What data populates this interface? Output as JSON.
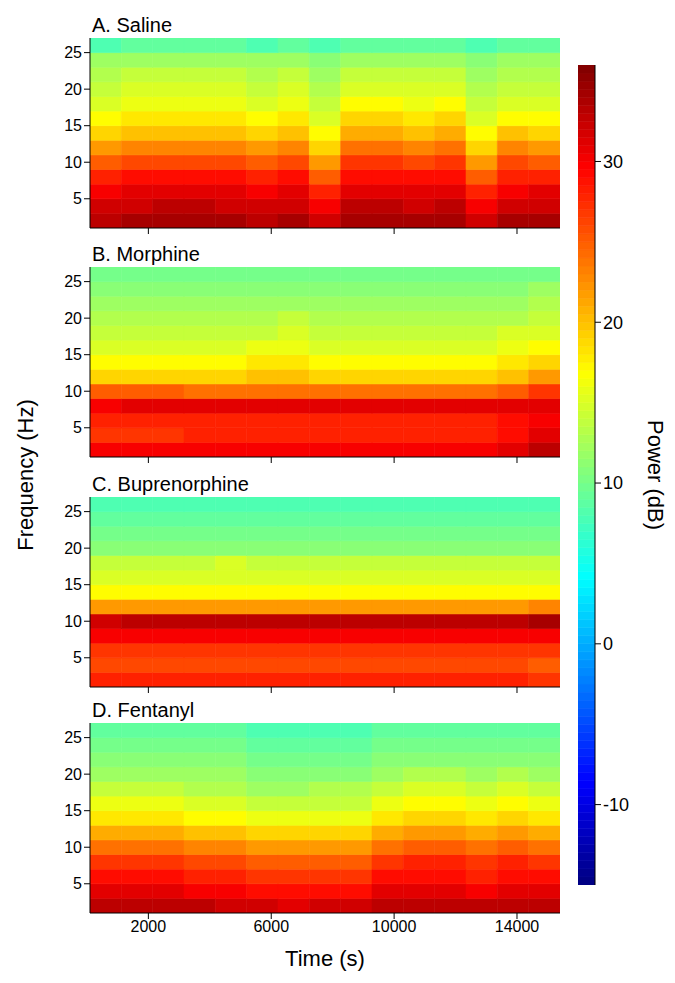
{
  "ylabel": "Frequency (Hz)",
  "colorbar": {
    "range": [
      -15,
      36
    ],
    "ticks": [
      -10,
      0,
      10,
      20,
      30
    ],
    "label": "Power (dB)"
  },
  "chart_data": [
    {
      "type": "heatmap",
      "title": "A. Saline",
      "xlim": [
        100,
        15400
      ],
      "xticks": [
        2000,
        6000,
        10000,
        14000
      ],
      "ylim": [
        1,
        27
      ],
      "yticks": [
        5,
        10,
        15,
        20,
        25
      ],
      "tick_labels": "y",
      "x_bins": [
        100,
        1120,
        2140,
        3160,
        4180,
        5200,
        6220,
        7240,
        8260,
        9280,
        10300,
        11320,
        12340,
        13360,
        14380,
        15400
      ],
      "y_bins": [
        1,
        3,
        5,
        7,
        9,
        11,
        13,
        15,
        17,
        19,
        21,
        23,
        25,
        27
      ],
      "cells": [
        [
          33,
          34,
          34,
          34,
          34,
          33,
          34,
          32,
          34,
          34,
          34,
          34,
          32,
          34,
          34
        ],
        [
          32,
          32,
          33,
          33,
          32,
          32,
          32,
          30,
          33,
          33,
          32,
          33,
          30,
          32,
          32
        ],
        [
          30,
          31,
          31,
          31,
          31,
          30,
          31,
          28,
          31,
          31,
          31,
          31,
          28,
          30,
          31
        ],
        [
          28,
          29,
          29,
          29,
          29,
          28,
          29,
          25,
          29,
          29,
          29,
          29,
          25,
          28,
          28
        ],
        [
          25,
          26,
          26,
          26,
          26,
          25,
          26,
          22,
          27,
          27,
          26,
          27,
          22,
          26,
          25
        ],
        [
          22,
          23,
          23,
          23,
          23,
          22,
          23,
          19,
          24,
          24,
          23,
          24,
          19,
          23,
          22
        ],
        [
          19,
          20,
          20,
          20,
          20,
          19,
          20,
          17,
          21,
          21,
          20,
          21,
          17,
          20,
          19
        ],
        [
          17,
          18,
          18,
          18,
          18,
          17,
          18,
          15,
          19,
          19,
          18,
          19,
          15,
          17,
          17
        ],
        [
          15,
          16,
          16,
          16,
          16,
          15,
          16,
          14,
          17,
          17,
          16,
          17,
          14,
          15,
          15
        ],
        [
          14,
          15,
          15,
          15,
          15,
          14,
          15,
          13,
          15,
          15,
          15,
          15,
          13,
          14,
          14
        ],
        [
          13,
          14,
          14,
          14,
          14,
          13,
          14,
          12,
          14,
          14,
          14,
          14,
          12,
          13,
          13
        ],
        [
          12,
          12,
          12,
          12,
          12,
          12,
          12,
          11,
          12,
          12,
          12,
          12,
          11,
          12,
          12
        ],
        [
          8,
          9,
          9,
          9,
          9,
          8,
          9,
          8,
          9,
          9,
          9,
          9,
          8,
          9,
          9
        ]
      ]
    },
    {
      "type": "heatmap",
      "title": "B. Morphine",
      "xlim": [
        100,
        15400
      ],
      "xticks": [
        2000,
        6000,
        10000,
        14000
      ],
      "ylim": [
        1,
        27
      ],
      "yticks": [
        5,
        10,
        15,
        20,
        25
      ],
      "tick_labels": "y",
      "x_bins": [
        100,
        1120,
        2140,
        3160,
        4180,
        5200,
        6220,
        7240,
        8260,
        9280,
        10300,
        11320,
        12340,
        13360,
        14380,
        15400
      ],
      "y_bins": [
        1,
        3,
        5,
        7,
        9,
        11,
        13,
        15,
        17,
        19,
        21,
        23,
        25,
        27
      ],
      "cells": [
        [
          30,
          30,
          30,
          30,
          30,
          30,
          30,
          30,
          30,
          30,
          30,
          30,
          30,
          31,
          33
        ],
        [
          27,
          27,
          27,
          28,
          28,
          28,
          28,
          28,
          28,
          28,
          28,
          28,
          28,
          29,
          31
        ],
        [
          28,
          28,
          28,
          28,
          28,
          28,
          28,
          28,
          28,
          28,
          28,
          28,
          28,
          29,
          30
        ],
        [
          30,
          31,
          31,
          31,
          31,
          31,
          31,
          31,
          31,
          31,
          31,
          31,
          31,
          31,
          31
        ],
        [
          25,
          25,
          25,
          24,
          24,
          24,
          24,
          24,
          24,
          24,
          24,
          24,
          24,
          25,
          27
        ],
        [
          19,
          19,
          19,
          19,
          19,
          20,
          20,
          19,
          19,
          19,
          19,
          19,
          19,
          20,
          22
        ],
        [
          17,
          17,
          17,
          17,
          17,
          18,
          18,
          17,
          17,
          17,
          17,
          17,
          17,
          18,
          19
        ],
        [
          15,
          15,
          15,
          15,
          15,
          16,
          16,
          15,
          15,
          15,
          15,
          15,
          15,
          16,
          17
        ],
        [
          14,
          14,
          14,
          14,
          14,
          14,
          15,
          14,
          14,
          14,
          14,
          14,
          14,
          15,
          15
        ],
        [
          13,
          13,
          13,
          13,
          13,
          13,
          14,
          13,
          13,
          13,
          13,
          13,
          13,
          13,
          14
        ],
        [
          12,
          12,
          12,
          12,
          12,
          12,
          12,
          12,
          12,
          12,
          12,
          12,
          12,
          12,
          13
        ],
        [
          11,
          11,
          11,
          11,
          11,
          11,
          11,
          11,
          11,
          11,
          11,
          11,
          11,
          11,
          12
        ],
        [
          10,
          10,
          10,
          10,
          10,
          10,
          10,
          10,
          10,
          10,
          10,
          10,
          10,
          10,
          10
        ]
      ]
    },
    {
      "type": "heatmap",
      "title": "C. Buprenorphine",
      "xlim": [
        100,
        15400
      ],
      "xticks": [
        2000,
        6000,
        10000,
        14000
      ],
      "ylim": [
        1,
        27
      ],
      "yticks": [
        5,
        10,
        15,
        20,
        25
      ],
      "tick_labels": "y",
      "x_bins": [
        100,
        1120,
        2140,
        3160,
        4180,
        5200,
        6220,
        7240,
        8260,
        9280,
        10300,
        11320,
        12340,
        13360,
        14380,
        15400
      ],
      "y_bins": [
        1,
        3,
        5,
        7,
        9,
        11,
        13,
        15,
        17,
        19,
        21,
        23,
        25,
        27
      ],
      "cells": [
        [
          28,
          28,
          28,
          28,
          28,
          28,
          28,
          28,
          28,
          28,
          28,
          28,
          28,
          28,
          27
        ],
        [
          26,
          26,
          26,
          26,
          26,
          26,
          26,
          26,
          26,
          26,
          26,
          26,
          26,
          26,
          25
        ],
        [
          27,
          27,
          27,
          27,
          27,
          27,
          27,
          27,
          27,
          27,
          27,
          27,
          27,
          27,
          27
        ],
        [
          30,
          30,
          30,
          30,
          30,
          30,
          30,
          30,
          30,
          30,
          30,
          30,
          30,
          30,
          30
        ],
        [
          32,
          33,
          33,
          33,
          33,
          33,
          33,
          33,
          33,
          33,
          33,
          33,
          33,
          33,
          34
        ],
        [
          22,
          22,
          22,
          22,
          22,
          22,
          22,
          22,
          22,
          22,
          22,
          22,
          22,
          22,
          23
        ],
        [
          17,
          17,
          17,
          17,
          17,
          17,
          17,
          17,
          17,
          17,
          17,
          17,
          17,
          17,
          17
        ],
        [
          15,
          15,
          15,
          15,
          15,
          15,
          15,
          15,
          15,
          15,
          15,
          15,
          15,
          15,
          15
        ],
        [
          14,
          14,
          14,
          14,
          15,
          14,
          14,
          14,
          14,
          14,
          14,
          14,
          14,
          14,
          14
        ],
        [
          11,
          11,
          11,
          11,
          11,
          11,
          11,
          11,
          11,
          11,
          11,
          11,
          11,
          11,
          11
        ],
        [
          10,
          10,
          10,
          10,
          10,
          10,
          10,
          10,
          10,
          10,
          10,
          10,
          10,
          10,
          10
        ],
        [
          9,
          9,
          9,
          9,
          9,
          9,
          9,
          9,
          9,
          9,
          9,
          9,
          9,
          9,
          9
        ],
        [
          8,
          8,
          8,
          8,
          8,
          8,
          8,
          8,
          8,
          8,
          8,
          8,
          8,
          8,
          8
        ]
      ]
    },
    {
      "type": "heatmap",
      "title": "D. Fentanyl",
      "xlabel": "Time (s)",
      "xlim": [
        100,
        15400
      ],
      "xticks": [
        2000,
        6000,
        10000,
        14000
      ],
      "ylim": [
        1,
        27
      ],
      "yticks": [
        5,
        10,
        15,
        20,
        25
      ],
      "x_bins": [
        100,
        1120,
        2140,
        3160,
        4180,
        5200,
        6220,
        7240,
        8260,
        9280,
        10300,
        11320,
        12340,
        13360,
        14380,
        15400
      ],
      "y_bins": [
        1,
        3,
        5,
        7,
        9,
        11,
        13,
        15,
        17,
        19,
        21,
        23,
        25,
        27
      ],
      "cells": [
        [
          33,
          33,
          33,
          33,
          32,
          32,
          31,
          32,
          32,
          33,
          33,
          33,
          33,
          33,
          33
        ],
        [
          31,
          31,
          31,
          30,
          30,
          29,
          29,
          29,
          29,
          31,
          31,
          31,
          30,
          31,
          31
        ],
        [
          29,
          29,
          29,
          28,
          28,
          27,
          27,
          27,
          27,
          29,
          29,
          29,
          28,
          29,
          29
        ],
        [
          27,
          27,
          27,
          26,
          26,
          25,
          25,
          25,
          25,
          27,
          28,
          28,
          27,
          28,
          27
        ],
        [
          24,
          24,
          24,
          23,
          23,
          22,
          22,
          22,
          22,
          24,
          25,
          25,
          24,
          25,
          24
        ],
        [
          21,
          21,
          21,
          20,
          20,
          19,
          19,
          19,
          19,
          21,
          22,
          22,
          21,
          22,
          21
        ],
        [
          18,
          18,
          18,
          17,
          17,
          16,
          16,
          16,
          16,
          18,
          19,
          19,
          18,
          19,
          18
        ],
        [
          16,
          16,
          16,
          15,
          15,
          14,
          14,
          14,
          14,
          16,
          17,
          17,
          16,
          17,
          16
        ],
        [
          14,
          14,
          14,
          13,
          13,
          12,
          12,
          13,
          13,
          14,
          15,
          15,
          14,
          15,
          14
        ],
        [
          12,
          12,
          12,
          12,
          12,
          11,
          11,
          11,
          11,
          12,
          13,
          13,
          12,
          13,
          12
        ],
        [
          11,
          11,
          11,
          11,
          11,
          10,
          10,
          10,
          10,
          11,
          11,
          11,
          11,
          11,
          11
        ],
        [
          10,
          10,
          10,
          10,
          10,
          9,
          9,
          9,
          9,
          10,
          10,
          10,
          10,
          10,
          10
        ],
        [
          9,
          9,
          9,
          9,
          9,
          8,
          8,
          8,
          8,
          9,
          9,
          9,
          9,
          9,
          9
        ]
      ]
    }
  ]
}
